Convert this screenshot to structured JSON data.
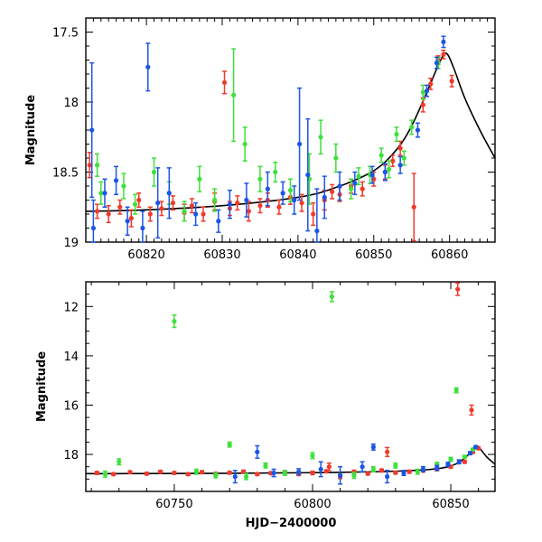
{
  "colors": {
    "red": "#f03a2a",
    "green": "#3ee03a",
    "blue": "#1b55e6",
    "curve": "#000000"
  },
  "chart_data": [
    {
      "type": "scatter",
      "title": "",
      "xlabel": "",
      "ylabel": "Magnitude",
      "xlim": [
        60812,
        60866
      ],
      "ylim": [
        19.0,
        17.4
      ],
      "y_inverted": true,
      "grid": false,
      "x_ticks": [
        60820,
        60830,
        60840,
        60850,
        60860
      ],
      "y_ticks": [
        17.5,
        18,
        18.5,
        19
      ],
      "y_tick_labels": [
        "17.5",
        "18",
        "18.5",
        "19"
      ],
      "model_curve": {
        "x": [
          60812,
          60820,
          60830,
          60840,
          60845,
          60850,
          60853,
          60855,
          60857,
          60858.5,
          60859.5,
          60860.5,
          60862,
          60864,
          60866
        ],
        "y": [
          18.78,
          18.77,
          18.74,
          18.68,
          18.61,
          18.49,
          18.34,
          18.17,
          17.93,
          17.74,
          17.65,
          17.75,
          17.97,
          18.2,
          18.4
        ]
      },
      "series": [
        {
          "color": "red",
          "x": [
            60812.5,
            60813.5,
            60815,
            60816.5,
            60818,
            60819,
            60820.5,
            60822,
            60823.5,
            60825,
            60826,
            60827.5,
            60829,
            60830.3,
            60831,
            60832,
            60833.5,
            60835,
            60836,
            60837.5,
            60839,
            60840.5,
            60842,
            60843.5,
            60844.5,
            60845.5,
            60847,
            60848.5,
            60850,
            60851.5,
            60852.5,
            60853.5,
            60855.3,
            60856.5,
            60857.5,
            60858.5,
            60859.2,
            60860.3
          ],
          "y": [
            18.45,
            18.78,
            18.8,
            18.75,
            18.83,
            18.7,
            18.8,
            18.76,
            18.72,
            18.79,
            18.74,
            18.8,
            18.71,
            17.86,
            18.76,
            18.72,
            18.78,
            18.74,
            18.7,
            18.75,
            18.68,
            18.72,
            18.8,
            18.7,
            18.64,
            18.66,
            18.6,
            18.62,
            18.55,
            18.5,
            18.42,
            18.33,
            18.75,
            18.02,
            17.87,
            17.7,
            17.66,
            17.85
          ],
          "err": [
            0.09,
            0.05,
            0.06,
            0.05,
            0.06,
            0.05,
            0.05,
            0.05,
            0.05,
            0.06,
            0.05,
            0.05,
            0.06,
            0.08,
            0.05,
            0.05,
            0.07,
            0.05,
            0.05,
            0.05,
            0.05,
            0.06,
            0.08,
            0.07,
            0.05,
            0.05,
            0.05,
            0.05,
            0.05,
            0.05,
            0.04,
            0.05,
            0.24,
            0.05,
            0.04,
            0.03,
            0.03,
            0.04
          ]
        },
        {
          "color": "green",
          "x": [
            60813.5,
            60814,
            60817,
            60818.5,
            60821,
            60823,
            60825,
            60827,
            60829,
            60831.5,
            60833,
            60835,
            60837,
            60839,
            60841.5,
            60843,
            60845,
            60847,
            60848,
            60849.5,
            60851,
            60852,
            60853,
            60854,
            60855,
            60856.5,
            60858.5
          ],
          "y": [
            18.45,
            18.65,
            18.6,
            18.73,
            18.5,
            18.65,
            18.78,
            18.55,
            18.7,
            17.95,
            18.3,
            18.55,
            18.5,
            18.63,
            18.55,
            18.25,
            18.4,
            18.62,
            18.53,
            18.52,
            18.38,
            18.48,
            18.23,
            18.4,
            18.18,
            17.93,
            17.72
          ],
          "err": [
            0.08,
            0.08,
            0.09,
            0.07,
            0.1,
            0.08,
            0.07,
            0.09,
            0.08,
            0.33,
            0.12,
            0.09,
            0.07,
            0.08,
            0.18,
            0.12,
            0.1,
            0.07,
            0.06,
            0.06,
            0.05,
            0.06,
            0.05,
            0.05,
            0.05,
            0.05,
            0.04
          ]
        },
        {
          "color": "blue",
          "x": [
            60812.8,
            60813,
            60814.5,
            60816,
            60817.5,
            60819.5,
            60820.2,
            60821.5,
            60823,
            60826.5,
            60829.5,
            60831,
            60833.2,
            60836,
            60838,
            60839.5,
            60840.2,
            60841.3,
            60842.5,
            60843.5,
            60845.5,
            60847.5,
            60849.8,
            60851.5,
            60853.5,
            60855.8,
            60857,
            60858.3,
            60859.2
          ],
          "y": [
            18.2,
            18.9,
            18.65,
            18.56,
            18.85,
            18.9,
            17.75,
            18.72,
            18.65,
            18.8,
            18.85,
            18.73,
            18.7,
            18.62,
            18.65,
            18.7,
            18.3,
            18.52,
            18.92,
            18.68,
            18.6,
            18.58,
            18.52,
            18.5,
            18.45,
            18.2,
            17.92,
            17.72,
            17.57
          ],
          "err": [
            0.48,
            0.2,
            0.1,
            0.1,
            0.1,
            0.12,
            0.17,
            0.25,
            0.18,
            0.08,
            0.08,
            0.1,
            0.12,
            0.12,
            0.08,
            0.1,
            0.4,
            0.4,
            0.3,
            0.15,
            0.1,
            0.08,
            0.06,
            0.06,
            0.06,
            0.05,
            0.04,
            0.04,
            0.04
          ]
        }
      ]
    },
    {
      "type": "scatter",
      "title": "",
      "xlabel": "HJD−2400000",
      "ylabel": "Magnitude",
      "xlim": [
        60718,
        60866
      ],
      "ylim": [
        19.5,
        11.0
      ],
      "y_inverted": true,
      "grid": false,
      "x_ticks": [
        60750,
        60800,
        60850
      ],
      "y_ticks": [
        12,
        14,
        16,
        18
      ],
      "y_tick_labels": [
        "12",
        "14",
        "16",
        "18"
      ],
      "model_curve": {
        "x": [
          60718,
          60760,
          60800,
          60830,
          60845,
          60852,
          60856,
          60858.5,
          60859.5,
          60860.5,
          60863,
          60866
        ],
        "y": [
          18.78,
          18.77,
          18.74,
          18.68,
          18.58,
          18.38,
          18.05,
          17.75,
          17.65,
          17.75,
          18.1,
          18.4
        ]
      },
      "series": [
        {
          "color": "red",
          "x": [
            60722,
            60728,
            60734,
            60740,
            60745,
            60750,
            60755,
            60760,
            60765,
            60770,
            60775,
            60780,
            60785,
            60790,
            60795,
            60800,
            60805,
            60810,
            60815,
            60820,
            60825,
            60830,
            60835,
            60840,
            60845,
            60850,
            60855,
            60858,
            60860,
            60852.5,
            60857.5,
            60827,
            60806
          ],
          "y": [
            18.75,
            18.8,
            18.72,
            18.78,
            18.7,
            18.75,
            18.8,
            18.72,
            18.78,
            18.74,
            18.7,
            18.8,
            18.76,
            18.72,
            18.8,
            18.75,
            18.68,
            18.9,
            18.7,
            18.78,
            18.65,
            18.74,
            18.7,
            18.66,
            18.6,
            18.5,
            18.3,
            17.9,
            17.75,
            11.3,
            16.2,
            17.9,
            18.5
          ],
          "err": [
            0.06,
            0.05,
            0.05,
            0.05,
            0.05,
            0.05,
            0.05,
            0.06,
            0.05,
            0.05,
            0.06,
            0.05,
            0.06,
            0.05,
            0.05,
            0.07,
            0.05,
            0.08,
            0.06,
            0.05,
            0.06,
            0.05,
            0.06,
            0.05,
            0.06,
            0.05,
            0.05,
            0.05,
            0.05,
            0.25,
            0.2,
            0.18,
            0.15
          ]
        },
        {
          "color": "green",
          "x": [
            60725,
            60730,
            60750,
            60758,
            60765,
            60770,
            60776,
            60783,
            60790,
            60800,
            60807,
            60815,
            60822,
            60830,
            60838,
            60845,
            60850,
            60852,
            60855,
            60858
          ],
          "y": [
            18.8,
            18.3,
            12.6,
            18.7,
            18.85,
            17.6,
            18.9,
            18.45,
            18.75,
            18.05,
            11.6,
            18.85,
            18.6,
            18.45,
            18.7,
            18.4,
            18.2,
            15.4,
            18.1,
            17.8
          ],
          "err": [
            0.12,
            0.12,
            0.25,
            0.1,
            0.1,
            0.1,
            0.12,
            0.1,
            0.1,
            0.12,
            0.2,
            0.12,
            0.1,
            0.1,
            0.1,
            0.08,
            0.08,
            0.1,
            0.06,
            0.05
          ]
        },
        {
          "color": "blue",
          "x": [
            60772,
            60780,
            60786,
            60795,
            60803,
            60810,
            60818,
            60822,
            60827,
            60833,
            60840,
            60845,
            60849,
            60853,
            60857,
            60859
          ],
          "y": [
            18.9,
            17.9,
            18.75,
            18.7,
            18.6,
            18.85,
            18.5,
            17.7,
            18.9,
            18.75,
            18.6,
            18.55,
            18.4,
            18.3,
            17.95,
            17.7
          ],
          "err": [
            0.25,
            0.25,
            0.15,
            0.12,
            0.3,
            0.35,
            0.2,
            0.12,
            0.25,
            0.1,
            0.1,
            0.1,
            0.08,
            0.08,
            0.06,
            0.05
          ]
        }
      ]
    }
  ]
}
